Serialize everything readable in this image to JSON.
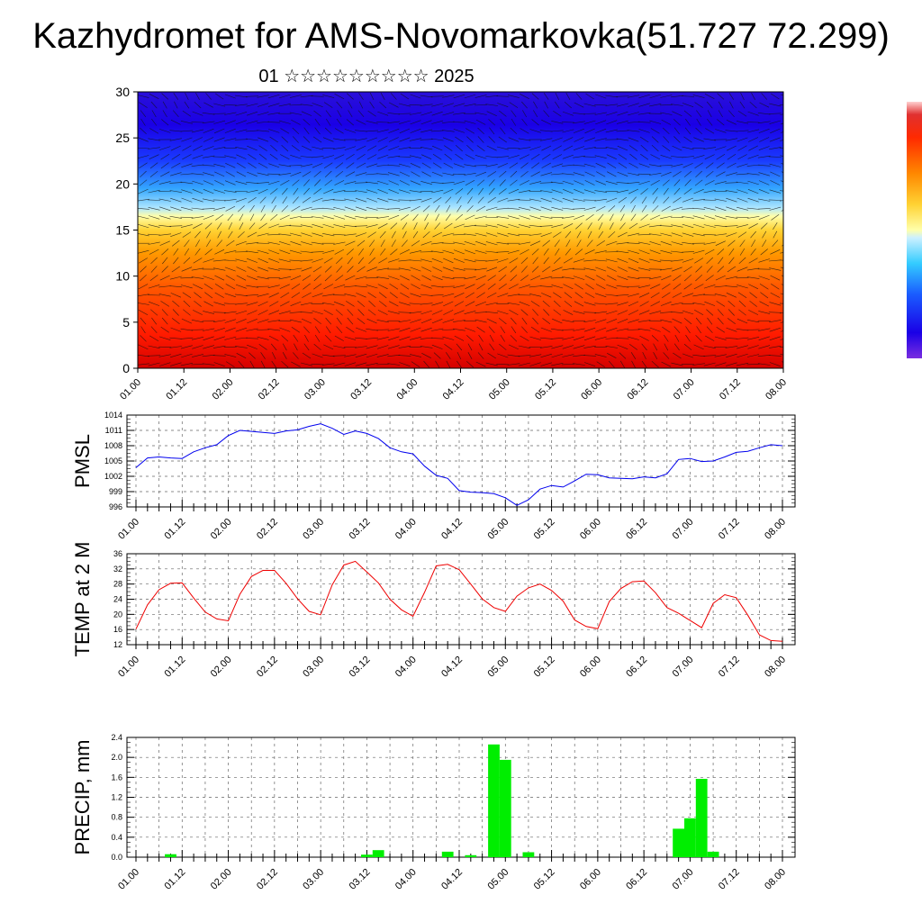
{
  "header": {
    "title": "Kazhydromet for AMS-Novomarkovka(51.727 72.299)",
    "subtitle": "01 ☆☆☆☆☆☆☆☆☆ 2025"
  },
  "x_tick_labels": [
    "01.00",
    "01.12",
    "02.00",
    "02.12",
    "03.00",
    "03.12",
    "04.00",
    "04.12",
    "05.00",
    "05.12",
    "06.00",
    "06.12",
    "07.00",
    "07.12",
    "08.00"
  ],
  "chart_data": [
    {
      "type": "heatmap",
      "title": "",
      "xlabel": "",
      "ylabel": "",
      "ylim": [
        0,
        30
      ],
      "y_ticks": [
        0,
        5,
        10,
        15,
        20,
        25,
        30
      ],
      "overlay": "wind arrows",
      "colorbar": [
        "#ffffff",
        "#ff3300",
        "#ffcc00",
        "#ffffaa",
        "#33ccff",
        "#0000ff",
        "#6a2ee0"
      ],
      "description_layers": [
        {
          "from": 0,
          "to": 8,
          "color": "#ff1a00"
        },
        {
          "from": 8,
          "to": 13,
          "color": "#ff8800"
        },
        {
          "from": 13,
          "to": 17,
          "color": "#ffdd33"
        },
        {
          "from": 17,
          "to": 22,
          "color": "#33a6ff"
        },
        {
          "from": 22,
          "to": 30,
          "color": "#1a00e6"
        }
      ]
    },
    {
      "type": "line",
      "ylabel": "PMSL",
      "ylim": [
        996,
        1014
      ],
      "y_ticks": [
        996,
        999,
        1002,
        1005,
        1008,
        1011,
        1014
      ],
      "series": [
        {
          "color": "#0000ee",
          "x": [
            0,
            3,
            6,
            9,
            12,
            15,
            18,
            21,
            24,
            27,
            30,
            33,
            36,
            39,
            42,
            45,
            48,
            51,
            54,
            57,
            60,
            63,
            66,
            69,
            72,
            75,
            78,
            81,
            84,
            87,
            90,
            93,
            96,
            99,
            102,
            105,
            108,
            111,
            114,
            117,
            120,
            123,
            126,
            129,
            132,
            135,
            138,
            141,
            144,
            147,
            150,
            153,
            156,
            159,
            162,
            165,
            168
          ],
          "values": [
            1003.7,
            1005.6,
            1005.8,
            1005.6,
            1005.5,
            1006.8,
            1007.6,
            1008.2,
            1010.0,
            1011.0,
            1010.8,
            1010.6,
            1010.4,
            1010.9,
            1011.1,
            1011.8,
            1012.3,
            1011.4,
            1010.2,
            1010.9,
            1010.4,
            1009.4,
            1007.6,
            1006.8,
            1006.4,
            1004.0,
            1002.2,
            1001.6,
            999.2,
            998.9,
            998.8,
            998.6,
            997.8,
            996.3,
            997.4,
            999.5,
            1000.2,
            999.9,
            1001.1,
            1002.4,
            1002.3,
            1001.7,
            1001.6,
            1001.5,
            1001.9,
            1001.7,
            1002.5,
            1005.3,
            1005.5,
            1004.9,
            1005.0,
            1005.8,
            1006.7,
            1006.9,
            1007.6,
            1008.2,
            1008.0
          ]
        }
      ]
    },
    {
      "type": "line",
      "ylabel": "TEMP at 2 M",
      "ylim": [
        12,
        36
      ],
      "y_ticks": [
        12,
        16,
        20,
        24,
        28,
        32,
        36
      ],
      "series": [
        {
          "color": "#ee0000",
          "x": [
            0,
            3,
            6,
            9,
            12,
            15,
            18,
            21,
            24,
            27,
            30,
            33,
            36,
            39,
            42,
            45,
            48,
            51,
            54,
            57,
            60,
            63,
            66,
            69,
            72,
            75,
            78,
            81,
            84,
            87,
            90,
            93,
            96,
            99,
            102,
            105,
            108,
            111,
            114,
            117,
            120,
            123,
            126,
            129,
            132,
            135,
            138,
            141,
            144,
            147,
            150,
            153,
            156,
            159,
            162,
            165,
            168
          ],
          "values": [
            16.1,
            22.5,
            26.5,
            28.2,
            28.3,
            24.3,
            20.6,
            18.8,
            18.3,
            25.3,
            30.0,
            31.6,
            31.6,
            28.2,
            24.1,
            20.8,
            19.9,
            27.8,
            33.0,
            34.0,
            31.2,
            28.3,
            24.0,
            21.2,
            19.5,
            25.8,
            32.8,
            33.2,
            31.8,
            28.0,
            24.1,
            21.8,
            20.8,
            24.8,
            27.0,
            28.0,
            26.3,
            23.5,
            18.5,
            16.8,
            16.2,
            23.4,
            26.8,
            28.6,
            28.8,
            25.7,
            21.8,
            20.3,
            18.4,
            16.5,
            22.9,
            25.2,
            24.4,
            19.8,
            14.6,
            13.1,
            12.9
          ]
        }
      ]
    },
    {
      "type": "bar",
      "ylabel": "PRECIP, mm",
      "ylim": [
        0,
        2.4
      ],
      "y_ticks": [
        "0.0",
        "0.4",
        "0.8",
        "1.2",
        "1.6",
        "2.0",
        "2.4"
      ],
      "bar_color": "#00ee00",
      "bar_width_hours": 3,
      "bars": [
        {
          "x": 9,
          "value": 0.06
        },
        {
          "x": 60,
          "value": 0.05
        },
        {
          "x": 63,
          "value": 0.14
        },
        {
          "x": 81,
          "value": 0.11
        },
        {
          "x": 87,
          "value": 0.04
        },
        {
          "x": 93,
          "value": 2.26
        },
        {
          "x": 96,
          "value": 1.95
        },
        {
          "x": 102,
          "value": 0.1
        },
        {
          "x": 141,
          "value": 0.57
        },
        {
          "x": 144,
          "value": 0.78
        },
        {
          "x": 147,
          "value": 1.57
        },
        {
          "x": 150,
          "value": 0.11
        }
      ]
    }
  ]
}
